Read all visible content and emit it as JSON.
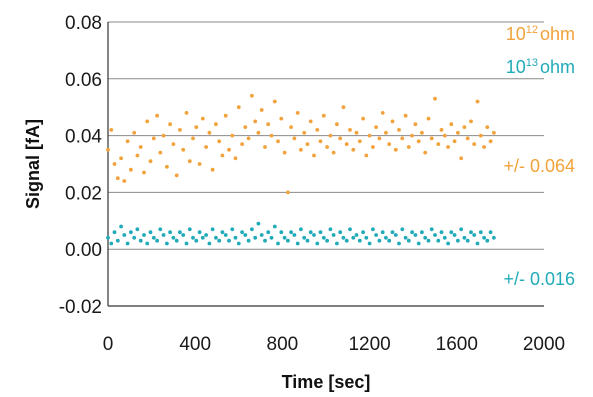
{
  "chart_data": {
    "type": "scatter",
    "xlabel": "Time [sec]",
    "ylabel": "Signal [fA]",
    "xlim": [
      0,
      2000
    ],
    "ylim": [
      -0.02,
      0.08
    ],
    "xticks": [
      "0",
      "400",
      "800",
      "1200",
      "1600",
      "2000"
    ],
    "yticks": [
      "-0.02",
      "0.00",
      "0.02",
      "0.04",
      "0.06",
      "0.08"
    ],
    "grid": "horizontal",
    "legend_position": "top-right",
    "colors": {
      "s1": "#f2a23a",
      "s2": "#21aab8",
      "grid": "#8a8a8a",
      "axis": "#333333"
    },
    "series": [
      {
        "name": "10^12 ohm",
        "label_base": "10",
        "label_exp": "12",
        "label_unit": "ohm",
        "annotation": "+/- 0.064",
        "color": "#f2a23a",
        "x": [
          0,
          15,
          30,
          45,
          60,
          75,
          90,
          105,
          120,
          135,
          150,
          165,
          180,
          195,
          210,
          225,
          240,
          255,
          270,
          285,
          300,
          315,
          330,
          345,
          360,
          375,
          390,
          405,
          420,
          435,
          450,
          465,
          480,
          495,
          510,
          525,
          540,
          555,
          570,
          585,
          600,
          615,
          630,
          645,
          660,
          675,
          690,
          705,
          720,
          735,
          750,
          765,
          780,
          795,
          810,
          825,
          840,
          855,
          870,
          885,
          900,
          915,
          930,
          945,
          960,
          975,
          990,
          1005,
          1020,
          1035,
          1050,
          1065,
          1080,
          1095,
          1110,
          1125,
          1140,
          1155,
          1170,
          1185,
          1200,
          1215,
          1230,
          1245,
          1260,
          1275,
          1290,
          1305,
          1320,
          1335,
          1350,
          1365,
          1380,
          1395,
          1410,
          1425,
          1440,
          1455,
          1470,
          1485,
          1500,
          1515,
          1530,
          1545,
          1560,
          1575,
          1590,
          1605,
          1620,
          1635,
          1650,
          1665,
          1680,
          1695,
          1710,
          1725,
          1740,
          1755,
          1770
        ],
        "y": [
          0.035,
          0.042,
          0.03,
          0.025,
          0.032,
          0.024,
          0.038,
          0.028,
          0.041,
          0.033,
          0.036,
          0.027,
          0.045,
          0.031,
          0.039,
          0.047,
          0.034,
          0.04,
          0.029,
          0.044,
          0.037,
          0.026,
          0.042,
          0.035,
          0.048,
          0.031,
          0.039,
          0.043,
          0.03,
          0.046,
          0.036,
          0.041,
          0.028,
          0.044,
          0.038,
          0.033,
          0.047,
          0.035,
          0.04,
          0.032,
          0.05,
          0.037,
          0.043,
          0.039,
          0.054,
          0.045,
          0.041,
          0.049,
          0.036,
          0.044,
          0.04,
          0.052,
          0.038,
          0.046,
          0.034,
          0.02,
          0.043,
          0.039,
          0.048,
          0.035,
          0.041,
          0.037,
          0.045,
          0.033,
          0.042,
          0.038,
          0.047,
          0.036,
          0.04,
          0.034,
          0.044,
          0.039,
          0.05,
          0.037,
          0.042,
          0.035,
          0.041,
          0.038,
          0.046,
          0.033,
          0.04,
          0.036,
          0.043,
          0.039,
          0.048,
          0.041,
          0.037,
          0.045,
          0.035,
          0.042,
          0.039,
          0.047,
          0.036,
          0.04,
          0.044,
          0.038,
          0.041,
          0.034,
          0.046,
          0.039,
          0.053,
          0.037,
          0.042,
          0.04,
          0.036,
          0.044,
          0.038,
          0.041,
          0.032,
          0.043,
          0.039,
          0.045,
          0.037,
          0.052,
          0.04,
          0.036,
          0.043,
          0.038,
          0.041
        ]
      },
      {
        "name": "10^13 ohm",
        "label_base": "10",
        "label_exp": "13",
        "label_unit": "ohm",
        "annotation": "+/- 0.016",
        "color": "#21aab8",
        "x": [
          0,
          15,
          30,
          45,
          60,
          75,
          90,
          105,
          120,
          135,
          150,
          165,
          180,
          195,
          210,
          225,
          240,
          255,
          270,
          285,
          300,
          315,
          330,
          345,
          360,
          375,
          390,
          405,
          420,
          435,
          450,
          465,
          480,
          495,
          510,
          525,
          540,
          555,
          570,
          585,
          600,
          615,
          630,
          645,
          660,
          675,
          690,
          705,
          720,
          735,
          750,
          765,
          780,
          795,
          810,
          825,
          840,
          855,
          870,
          885,
          900,
          915,
          930,
          945,
          960,
          975,
          990,
          1005,
          1020,
          1035,
          1050,
          1065,
          1080,
          1095,
          1110,
          1125,
          1140,
          1155,
          1170,
          1185,
          1200,
          1215,
          1230,
          1245,
          1260,
          1275,
          1290,
          1305,
          1320,
          1335,
          1350,
          1365,
          1380,
          1395,
          1410,
          1425,
          1440,
          1455,
          1470,
          1485,
          1500,
          1515,
          1530,
          1545,
          1560,
          1575,
          1590,
          1605,
          1620,
          1635,
          1650,
          1665,
          1680,
          1695,
          1710,
          1725,
          1740,
          1755,
          1770
        ],
        "y": [
          0.004,
          0.002,
          0.006,
          0.003,
          0.008,
          0.005,
          0.002,
          0.006,
          0.004,
          0.007,
          0.003,
          0.005,
          0.002,
          0.006,
          0.004,
          0.003,
          0.007,
          0.005,
          0.002,
          0.006,
          0.004,
          0.003,
          0.006,
          0.005,
          0.002,
          0.007,
          0.004,
          0.003,
          0.006,
          0.004,
          0.005,
          0.002,
          0.007,
          0.004,
          0.003,
          0.006,
          0.005,
          0.003,
          0.007,
          0.004,
          0.002,
          0.006,
          0.005,
          0.003,
          0.007,
          0.004,
          0.009,
          0.005,
          0.003,
          0.006,
          0.004,
          0.008,
          0.002,
          0.006,
          0.004,
          0.003,
          0.006,
          0.005,
          0.002,
          0.007,
          0.004,
          0.003,
          0.006,
          0.005,
          0.002,
          0.006,
          0.004,
          0.003,
          0.007,
          0.005,
          0.002,
          0.006,
          0.004,
          0.003,
          0.007,
          0.004,
          0.005,
          0.003,
          0.006,
          0.004,
          0.002,
          0.007,
          0.005,
          0.003,
          0.006,
          0.004,
          0.003,
          0.006,
          0.005,
          0.002,
          0.007,
          0.004,
          0.003,
          0.006,
          0.005,
          0.002,
          0.006,
          0.004,
          0.003,
          0.007,
          0.005,
          0.003,
          0.006,
          0.004,
          0.002,
          0.006,
          0.005,
          0.003,
          0.007,
          0.004,
          0.003,
          0.006,
          0.005,
          0.002,
          0.006,
          0.004,
          0.003,
          0.006,
          0.004
        ]
      }
    ]
  }
}
